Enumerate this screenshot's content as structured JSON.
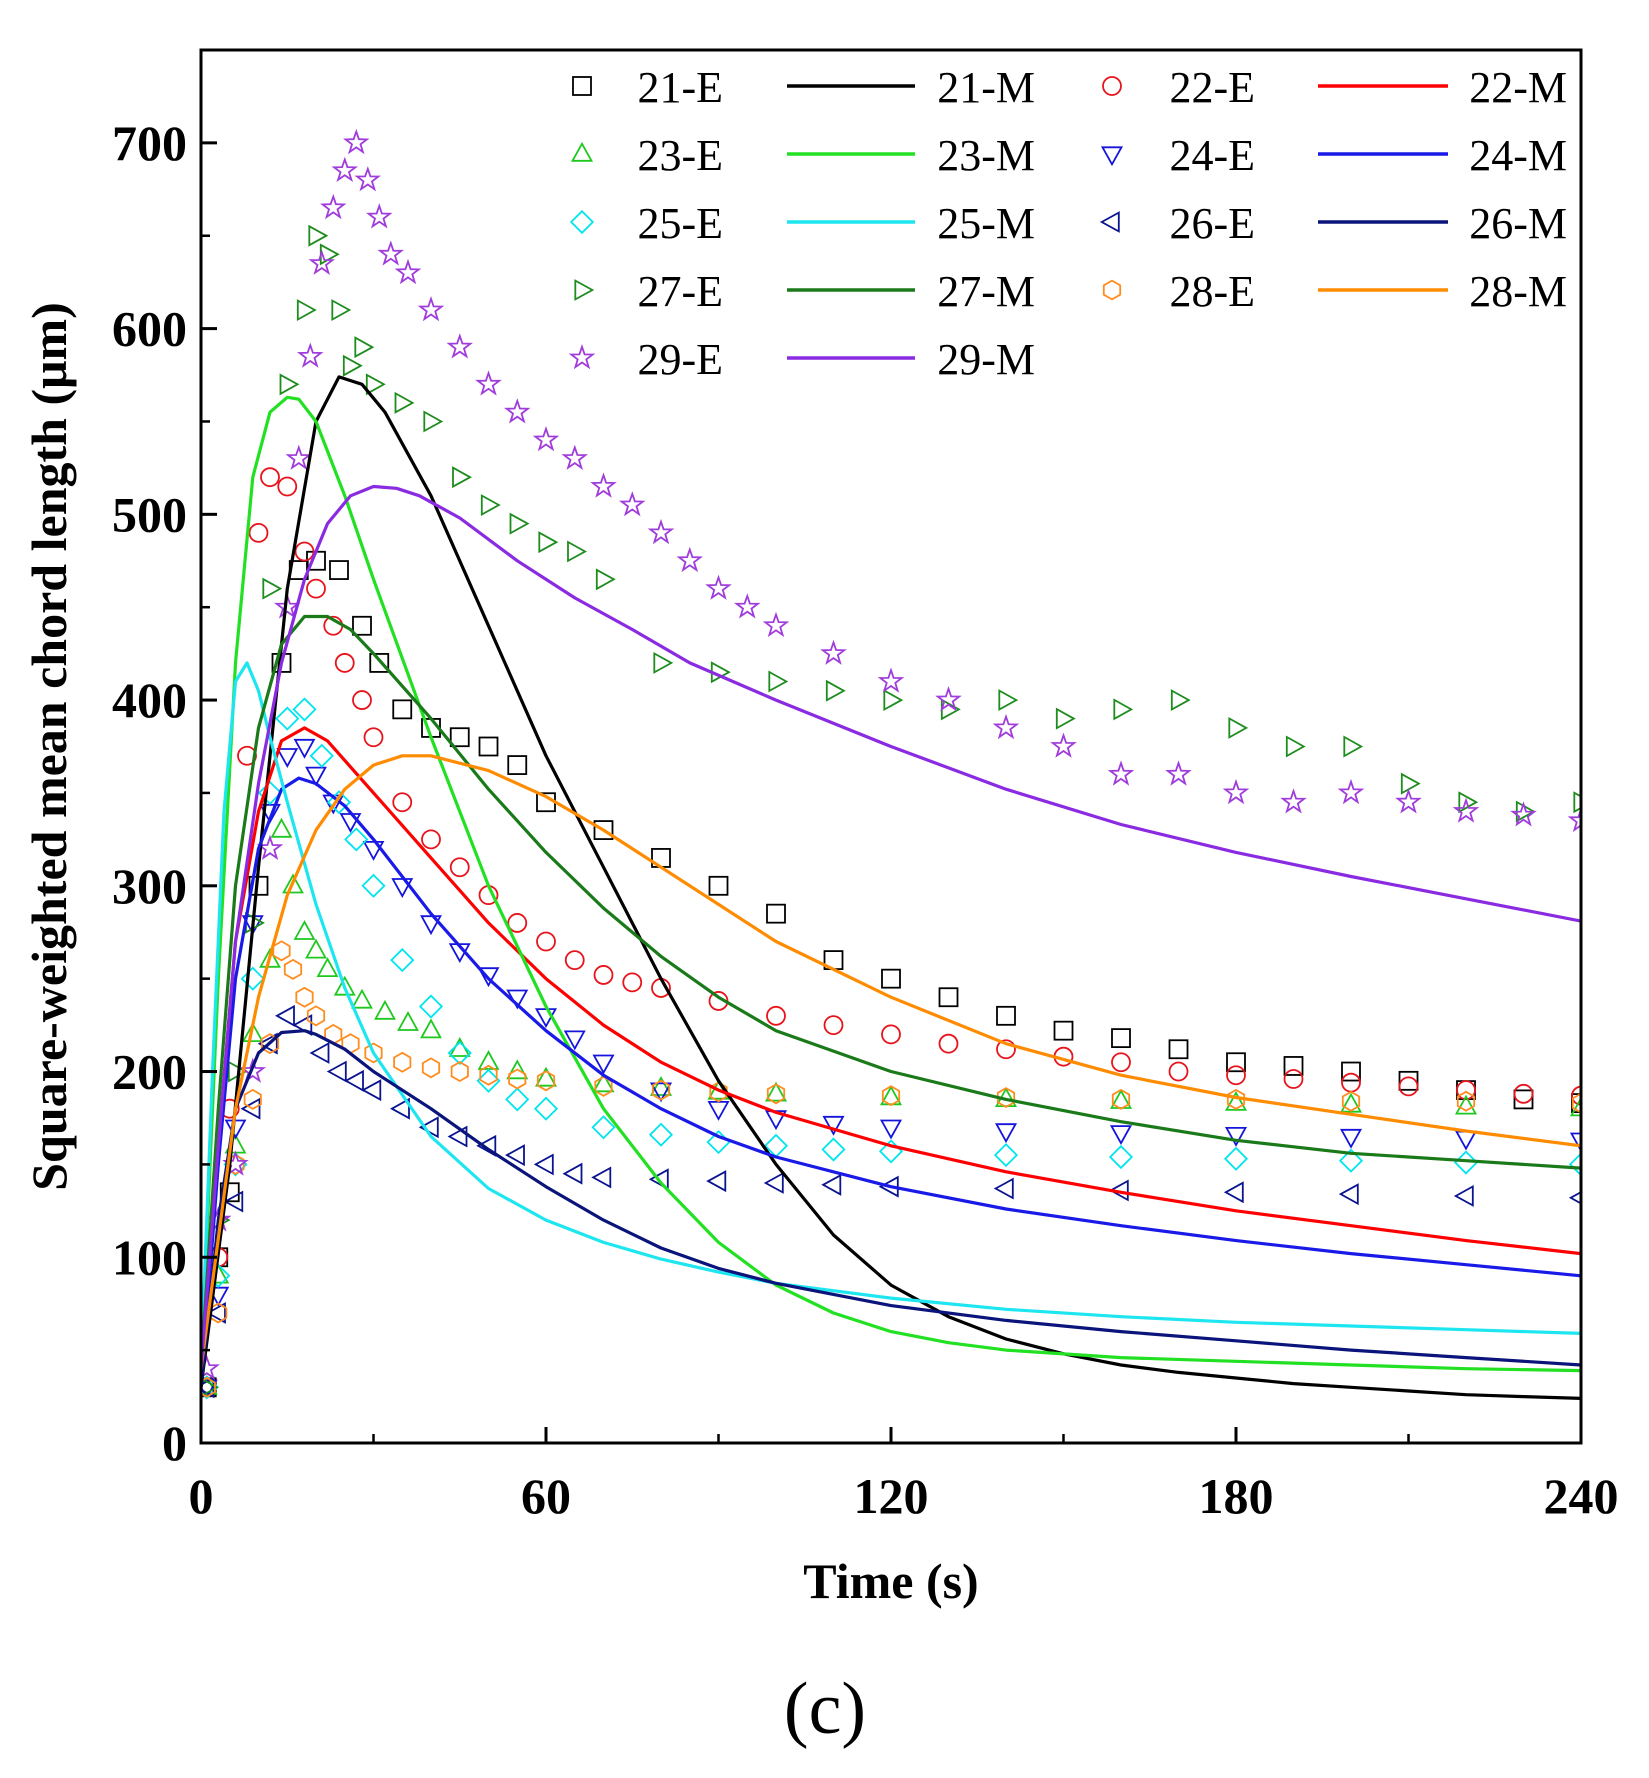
{
  "chart_data": {
    "type": "scatter",
    "xlabel": "Time (s)",
    "ylabel": "Square-weighted mean chord length (μm)",
    "xlim": [
      0,
      240
    ],
    "ylim": [
      0,
      750
    ],
    "xticks": [
      0,
      60,
      120,
      180,
      240
    ],
    "yticks": [
      0,
      100,
      200,
      300,
      400,
      500,
      600,
      700
    ],
    "xtick_labels": [
      "0",
      "60",
      "120",
      "180",
      "240"
    ],
    "ytick_labels": [
      "0",
      "100",
      "200",
      "300",
      "400",
      "500",
      "600",
      "700"
    ],
    "panel_label": "(c)",
    "legend_position": "top-right",
    "series": [
      {
        "name": "21-E",
        "kind": "experiment",
        "marker": "square",
        "color": "#000000",
        "x": [
          1,
          3,
          5,
          10,
          14,
          17,
          20,
          24,
          28,
          31,
          35,
          40,
          45,
          50,
          55,
          60,
          70,
          80,
          90,
          100,
          110,
          120,
          130,
          140,
          150,
          160,
          170,
          180,
          190,
          200,
          210,
          220,
          230,
          240
        ],
        "y": [
          30,
          100,
          135,
          300,
          420,
          470,
          475,
          470,
          440,
          420,
          395,
          385,
          380,
          375,
          365,
          345,
          330,
          315,
          300,
          285,
          260,
          250,
          240,
          230,
          222,
          218,
          212,
          205,
          203,
          200,
          195,
          190,
          185,
          183
        ]
      },
      {
        "name": "21-M",
        "kind": "model",
        "color": "#000000",
        "x": [
          0,
          5,
          10,
          15,
          20,
          24,
          28,
          32,
          40,
          50,
          60,
          70,
          80,
          90,
          100,
          110,
          120,
          130,
          140,
          150,
          160,
          170,
          180,
          190,
          200,
          210,
          220,
          230,
          240
        ],
        "y": [
          30,
          150,
          310,
          460,
          550,
          574,
          570,
          555,
          510,
          440,
          370,
          310,
          250,
          195,
          150,
          112,
          85,
          68,
          56,
          48,
          42,
          38,
          35,
          32,
          30,
          28,
          26,
          25,
          24
        ]
      },
      {
        "name": "22-E",
        "kind": "experiment",
        "marker": "circle",
        "color": "#e8141c",
        "x": [
          1,
          3,
          5,
          8,
          10,
          12,
          15,
          18,
          20,
          23,
          25,
          28,
          30,
          35,
          40,
          45,
          50,
          55,
          60,
          65,
          70,
          75,
          80,
          90,
          100,
          110,
          120,
          130,
          140,
          150,
          160,
          170,
          180,
          190,
          200,
          210,
          220,
          230,
          240
        ],
        "y": [
          30,
          100,
          180,
          370,
          490,
          520,
          515,
          480,
          460,
          440,
          420,
          400,
          380,
          345,
          325,
          310,
          295,
          280,
          270,
          260,
          252,
          248,
          245,
          238,
          230,
          225,
          220,
          215,
          212,
          208,
          205,
          200,
          198,
          196,
          194,
          192,
          190,
          188,
          187
        ]
      },
      {
        "name": "22-M",
        "kind": "model",
        "color": "#ff0000",
        "x": [
          0,
          3,
          6,
          10,
          14,
          18,
          22,
          26,
          30,
          40,
          50,
          60,
          70,
          80,
          90,
          100,
          120,
          140,
          160,
          180,
          200,
          220,
          240
        ],
        "y": [
          30,
          160,
          270,
          340,
          378,
          385,
          378,
          364,
          350,
          315,
          280,
          250,
          225,
          205,
          190,
          178,
          160,
          146,
          135,
          125,
          117,
          109,
          102
        ]
      },
      {
        "name": "23-E",
        "kind": "experiment",
        "marker": "triangle-up",
        "color": "#1ec81e",
        "x": [
          1,
          3,
          6,
          9,
          12,
          14,
          16,
          18,
          20,
          22,
          25,
          28,
          32,
          36,
          40,
          45,
          50,
          55,
          60,
          70,
          80,
          90,
          100,
          120,
          140,
          160,
          180,
          200,
          220,
          240
        ],
        "y": [
          30,
          90,
          160,
          220,
          260,
          330,
          300,
          275,
          265,
          255,
          245,
          238,
          232,
          226,
          222,
          212,
          205,
          200,
          196,
          193,
          191,
          189,
          188,
          186,
          185,
          184,
          183,
          182,
          181,
          180
        ]
      },
      {
        "name": "23-M",
        "kind": "model",
        "color": "#22e022",
        "x": [
          0,
          3,
          6,
          9,
          12,
          15,
          17,
          20,
          25,
          30,
          40,
          50,
          60,
          70,
          80,
          90,
          100,
          110,
          120,
          130,
          140,
          160,
          180,
          200,
          220,
          240
        ],
        "y": [
          40,
          250,
          420,
          520,
          555,
          563,
          562,
          550,
          510,
          465,
          380,
          300,
          235,
          180,
          140,
          108,
          85,
          70,
          60,
          54,
          50,
          46,
          44,
          42,
          40,
          39
        ]
      },
      {
        "name": "24-E",
        "kind": "experiment",
        "marker": "triangle-down",
        "color": "#1414dc",
        "x": [
          1,
          3,
          6,
          9,
          12,
          15,
          18,
          20,
          23,
          26,
          30,
          35,
          40,
          45,
          50,
          55,
          60,
          65,
          70,
          80,
          90,
          100,
          110,
          120,
          140,
          160,
          180,
          200,
          220,
          240
        ],
        "y": [
          30,
          80,
          170,
          280,
          340,
          370,
          375,
          360,
          345,
          335,
          320,
          300,
          280,
          265,
          252,
          240,
          230,
          218,
          205,
          190,
          180,
          175,
          172,
          170,
          168,
          167,
          166,
          165,
          164,
          163
        ]
      },
      {
        "name": "24-M",
        "kind": "model",
        "color": "#1a1ae8",
        "x": [
          0,
          3,
          6,
          10,
          14,
          17,
          20,
          25,
          30,
          40,
          50,
          60,
          70,
          80,
          90,
          100,
          120,
          140,
          160,
          180,
          200,
          220,
          240
        ],
        "y": [
          30,
          150,
          250,
          320,
          352,
          358,
          355,
          343,
          325,
          285,
          250,
          222,
          198,
          180,
          165,
          154,
          138,
          126,
          117,
          109,
          102,
          96,
          90
        ]
      },
      {
        "name": "25-E",
        "kind": "experiment",
        "marker": "diamond",
        "color": "#00e5ee",
        "x": [
          1,
          3,
          6,
          9,
          12,
          15,
          18,
          21,
          24,
          27,
          30,
          35,
          40,
          45,
          50,
          55,
          60,
          70,
          80,
          90,
          100,
          110,
          120,
          140,
          160,
          180,
          200,
          220,
          240
        ],
        "y": [
          30,
          90,
          150,
          250,
          350,
          390,
          395,
          370,
          345,
          325,
          300,
          260,
          235,
          210,
          195,
          185,
          180,
          170,
          166,
          162,
          160,
          158,
          157,
          155,
          154,
          153,
          152,
          151,
          150
        ]
      },
      {
        "name": "25-M",
        "kind": "model",
        "color": "#1ee6f0",
        "x": [
          0,
          2,
          4,
          6,
          8,
          10,
          12,
          15,
          20,
          25,
          30,
          40,
          50,
          60,
          70,
          80,
          90,
          100,
          120,
          140,
          160,
          180,
          200,
          220,
          240
        ],
        "y": [
          40,
          200,
          340,
          410,
          420,
          405,
          380,
          345,
          290,
          245,
          210,
          165,
          137,
          120,
          108,
          99,
          92,
          86,
          78,
          72,
          68,
          65,
          63,
          61,
          59
        ]
      },
      {
        "name": "26-E",
        "kind": "experiment",
        "marker": "triangle-left",
        "color": "#0a1490",
        "x": [
          1,
          3,
          6,
          9,
          12,
          15,
          18,
          21,
          24,
          27,
          30,
          35,
          40,
          45,
          50,
          55,
          60,
          65,
          70,
          80,
          90,
          100,
          110,
          120,
          140,
          160,
          180,
          200,
          220,
          240
        ],
        "y": [
          30,
          70,
          130,
          180,
          215,
          230,
          225,
          210,
          200,
          195,
          190,
          180,
          170,
          165,
          160,
          155,
          150,
          145,
          143,
          142,
          141,
          140,
          139,
          138,
          137,
          136,
          135,
          134,
          133,
          132
        ]
      },
      {
        "name": "26-M",
        "kind": "model",
        "color": "#0a147a",
        "x": [
          0,
          3,
          6,
          10,
          14,
          18,
          20,
          25,
          30,
          40,
          50,
          60,
          70,
          80,
          90,
          100,
          120,
          140,
          160,
          180,
          200,
          220,
          240
        ],
        "y": [
          30,
          120,
          180,
          210,
          221,
          222,
          220,
          212,
          200,
          180,
          158,
          138,
          120,
          105,
          94,
          86,
          74,
          66,
          60,
          55,
          50,
          46,
          42
        ]
      },
      {
        "name": "27-E",
        "kind": "experiment",
        "marker": "triangle-right",
        "color": "#1e8c1e",
        "x": [
          1,
          3,
          6,
          9,
          12,
          15,
          18,
          20,
          22,
          24,
          26,
          28,
          30,
          35,
          40,
          45,
          50,
          55,
          60,
          65,
          70,
          80,
          90,
          100,
          110,
          120,
          130,
          140,
          150,
          160,
          170,
          180,
          190,
          200,
          210,
          220,
          230,
          240
        ],
        "y": [
          30,
          120,
          200,
          280,
          460,
          570,
          610,
          650,
          640,
          610,
          580,
          590,
          570,
          560,
          550,
          520,
          505,
          495,
          485,
          480,
          465,
          420,
          415,
          410,
          405,
          400,
          395,
          400,
          390,
          395,
          400,
          385,
          375,
          375,
          355,
          345,
          340,
          345
        ]
      },
      {
        "name": "27-M",
        "kind": "model",
        "color": "#1a7a1a",
        "x": [
          0,
          3,
          6,
          10,
          14,
          18,
          22,
          26,
          30,
          40,
          50,
          60,
          70,
          80,
          90,
          100,
          120,
          140,
          160,
          180,
          200,
          220,
          240
        ],
        "y": [
          40,
          180,
          300,
          385,
          430,
          445,
          445,
          438,
          425,
          390,
          352,
          318,
          288,
          262,
          240,
          222,
          200,
          185,
          173,
          163,
          156,
          152,
          148
        ]
      },
      {
        "name": "28-E",
        "kind": "experiment",
        "marker": "hexagon",
        "color": "#ff8c1e",
        "x": [
          1,
          3,
          6,
          9,
          12,
          14,
          16,
          18,
          20,
          23,
          26,
          30,
          35,
          40,
          45,
          50,
          55,
          60,
          70,
          80,
          90,
          100,
          120,
          140,
          160,
          180,
          200,
          220,
          240
        ],
        "y": [
          30,
          70,
          150,
          185,
          215,
          265,
          255,
          240,
          230,
          220,
          215,
          210,
          205,
          202,
          200,
          198,
          196,
          195,
          192,
          190,
          189,
          188,
          187,
          186,
          185,
          185,
          184,
          184,
          183
        ]
      },
      {
        "name": "28-M",
        "kind": "model",
        "color": "#ff8c00",
        "x": [
          0,
          3,
          6,
          10,
          15,
          20,
          25,
          30,
          35,
          40,
          50,
          60,
          70,
          80,
          90,
          100,
          120,
          140,
          160,
          180,
          200,
          220,
          240
        ],
        "y": [
          40,
          110,
          180,
          240,
          295,
          330,
          352,
          365,
          370,
          370,
          362,
          348,
          330,
          310,
          290,
          270,
          240,
          215,
          198,
          186,
          177,
          168,
          160
        ]
      },
      {
        "name": "29-E",
        "kind": "experiment",
        "marker": "star",
        "color": "#a03cdc",
        "x": [
          1,
          3,
          6,
          9,
          12,
          15,
          17,
          19,
          21,
          23,
          25,
          27,
          29,
          31,
          33,
          36,
          40,
          45,
          50,
          55,
          60,
          65,
          70,
          75,
          80,
          85,
          90,
          95,
          100,
          110,
          120,
          130,
          140,
          150,
          160,
          170,
          180,
          190,
          200,
          210,
          220,
          230,
          240
        ],
        "y": [
          40,
          120,
          150,
          200,
          320,
          450,
          530,
          585,
          635,
          665,
          685,
          700,
          680,
          660,
          640,
          630,
          610,
          590,
          570,
          555,
          540,
          530,
          515,
          505,
          490,
          475,
          460,
          450,
          440,
          425,
          410,
          400,
          385,
          375,
          360,
          360,
          350,
          345,
          350,
          345,
          340,
          338,
          335
        ]
      },
      {
        "name": "29-M",
        "kind": "model",
        "color": "#8a2be2",
        "x": [
          0,
          3,
          6,
          10,
          14,
          18,
          22,
          26,
          30,
          34,
          38,
          45,
          55,
          65,
          75,
          85,
          100,
          120,
          140,
          160,
          180,
          200,
          220,
          240
        ],
        "y": [
          40,
          160,
          270,
          355,
          420,
          465,
          495,
          510,
          515,
          514,
          510,
          498,
          475,
          455,
          438,
          420,
          400,
          375,
          352,
          333,
          318,
          305,
          293,
          281
        ]
      }
    ]
  }
}
